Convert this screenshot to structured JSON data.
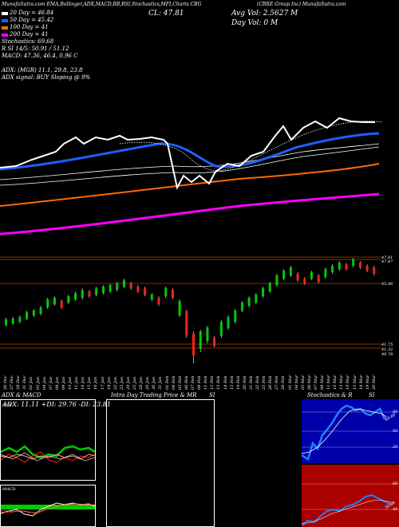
{
  "header": {
    "studies": "MunafaSutra.com  EMA,Bollinger,ADX,MACD,BB,RSI,Stochastics,MFI,Charts CBG",
    "title": "(CBRE Group Inc) MunafaSutra.com",
    "close": "CL: 47.81",
    "avg_vol": "Avg Vol: 2.5627 M",
    "day_vol": "Day Vol: 0  M"
  },
  "legend": [
    {
      "text": "20 Day = 46.84",
      "color": "#ffffff"
    },
    {
      "text": "50 Day = 45.42",
      "color": "#1e5fff"
    },
    {
      "text": "100 Day = 41",
      "color": "#ff6a00"
    },
    {
      "text": "200 Day = 41",
      "color": "#ff00ff"
    }
  ],
  "info_lines": [
    "Stochastics: 69.68",
    "R                SI 14/5: 50.91 / 51.12",
    "MACD: 47.36, 46.4,  0.96   C",
    "",
    "ADX:                                 (MGR) 11.1, 29.8, 23.8",
    "ADX  signal:                             BUY Sloping @ 9%"
  ],
  "price_labels": [
    "47.81",
    "47.47",
    "45.96",
    "41.75",
    "41.32",
    "40.78"
  ],
  "dates": [
    "26 Dec",
    "27 Dec",
    "28 Dec",
    "31 Dec",
    "02 Jan",
    "03 Jan",
    "04 Jan",
    "07 Jan",
    "08 Jan",
    "09 Jan",
    "10 Jan",
    "11 Jan",
    "14 Jan",
    "15 Jan",
    "16 Jan",
    "17 Jan",
    "18 Jan",
    "22 Jan",
    "23 Jan",
    "24 Jan",
    "25 Jan",
    "28 Jan",
    "29 Jan",
    "30 Jan",
    "31 Jan",
    "01 Feb",
    "04 Feb",
    "05 Feb",
    "06 Feb",
    "07 Feb",
    "08 Feb",
    "11 Feb",
    "12 Feb",
    "13 Feb",
    "14 Feb",
    "15 Feb",
    "19 Feb",
    "20 Feb",
    "21 Feb",
    "22 Feb",
    "25 Feb",
    "26 Feb",
    "27 Feb",
    "28 Feb",
    "01 Mar",
    "04 Mar",
    "05 Mar",
    "06 Mar",
    "07 Mar",
    "08 Mar",
    "11 Mar",
    "12 Mar",
    "13 Mar",
    "14 Mar",
    "15 Mar",
    "18 Mar",
    "19 Mar",
    "20 Mar"
  ],
  "panels": {
    "adx": {
      "title": "ADX  & MACD",
      "values": "ADX: 11.11  +DI: 29.76  -DI: 23.81",
      "left_labels": [
        "ADX",
        "MACD"
      ]
    },
    "intra": {
      "title": "Intra  Day Trading Price  & MR",
      "title_right": "SI"
    },
    "stoch": {
      "title": "Stochastics & R",
      "title_right": "SI",
      "levels": [
        "80",
        "50",
        "20"
      ],
      "tag": "69.68",
      "rsi_levels": [
        "60",
        "40"
      ],
      "rsi_tag": "50.91"
    }
  },
  "colors": {
    "up": "#00cc00",
    "down": "#ff2020",
    "white": "#ffffff",
    "blue": "#1e5fff",
    "orange": "#ff6a00",
    "magenta": "#ff00ff",
    "stoch_bg": "#0000aa",
    "rsi_bg": "#aa0000"
  }
}
